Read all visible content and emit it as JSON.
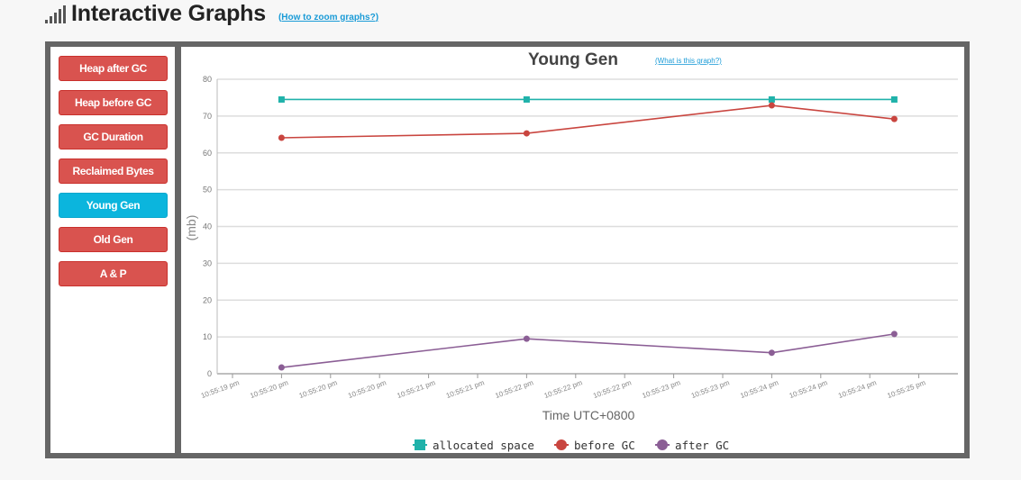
{
  "header": {
    "title": "Interactive Graphs",
    "zoom_link": "(How to zoom graphs?)",
    "icon": "signal-bars-icon"
  },
  "sidebar": {
    "buttons": [
      {
        "label": "Heap after GC",
        "active": false
      },
      {
        "label": "Heap before GC",
        "active": false
      },
      {
        "label": "GC Duration",
        "active": false
      },
      {
        "label": "Reclaimed Bytes",
        "active": false
      },
      {
        "label": "Young Gen",
        "active": true
      },
      {
        "label": "Old Gen",
        "active": false
      },
      {
        "label": "A & P",
        "active": false
      }
    ]
  },
  "colors": {
    "button": "#d9534f",
    "button_active": "#0bb5dd",
    "link": "#1a9bd7"
  },
  "chart_data": {
    "type": "line",
    "title": "Young Gen",
    "help_link": "(What is this graph?)",
    "xlabel": "Time UTC+0800",
    "ylabel": "(mb)",
    "ylim": [
      0,
      80
    ],
    "yticks": [
      0,
      10,
      20,
      30,
      40,
      50,
      60,
      70,
      80
    ],
    "grid": true,
    "legend_position": "bottom",
    "x_tick_labels": [
      "10:55:19 pm",
      "10:55:20 pm",
      "10:55:20 pm",
      "10:55:20 pm",
      "10:55:21 pm",
      "10:55:21 pm",
      "10:55:22 pm",
      "10:55:22 pm",
      "10:55:22 pm",
      "10:55:23 pm",
      "10:55:23 pm",
      "10:55:24 pm",
      "10:55:24 pm",
      "10:55:24 pm",
      "10:55:25 pm"
    ],
    "x_points": [
      1,
      6,
      11,
      13.5
    ],
    "series": [
      {
        "name": "allocated space",
        "color": "#20b2aa",
        "marker": "square",
        "values": [
          74.5,
          74.5,
          74.5,
          74.5
        ]
      },
      {
        "name": "before GC",
        "color": "#c9453f",
        "marker": "circle",
        "values": [
          64.1,
          65.3,
          72.9,
          69.2
        ]
      },
      {
        "name": "after GC",
        "color": "#8b5e95",
        "marker": "circle",
        "values": [
          1.7,
          9.5,
          5.7,
          10.8
        ]
      }
    ]
  }
}
